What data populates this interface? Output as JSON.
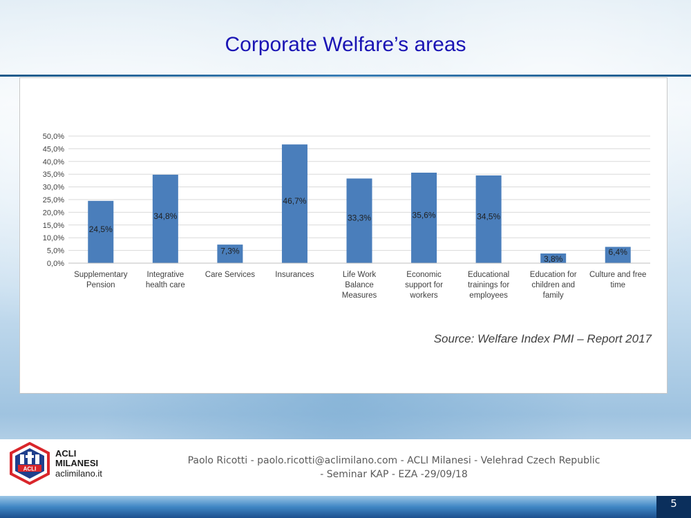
{
  "slide": {
    "title": "Corporate Welfare’s areas",
    "source": "Source: Welfare Index PMI – Report 2017",
    "footer_line1": "Paolo Ricotti  - paolo.ricotti@aclimilano.com  - ACLI Milanesi - Velehrad Czech Republic",
    "footer_line2": "- Seminar KAP - EZA -29/09/18",
    "page_number": "5"
  },
  "logo": {
    "name_line1": "ACLI",
    "name_line2": "MILANESI",
    "site": "aclimilano.it",
    "emblem_text": "ACLI"
  },
  "colors": {
    "title": "#1a14b4",
    "bar": "#4a7ebb",
    "logo_red": "#d9262b",
    "logo_blue": "#1f3f8c"
  },
  "chart_data": {
    "type": "bar",
    "categories": [
      [
        "Supplementary",
        "Pension"
      ],
      [
        "Integrative",
        "health care"
      ],
      [
        "Care Services"
      ],
      [
        "Insurances"
      ],
      [
        "Life Work",
        "Balance",
        "Measures"
      ],
      [
        "Economic",
        "support for",
        "workers"
      ],
      [
        "Educational",
        "trainings for",
        "employees"
      ],
      [
        "Education for",
        "children and",
        "family"
      ],
      [
        "Culture and free",
        "time"
      ]
    ],
    "values": [
      24.5,
      34.8,
      7.3,
      46.7,
      33.3,
      35.6,
      34.5,
      3.8,
      6.4
    ],
    "data_labels": [
      "24,5%",
      "34,8%",
      "7,3%",
      "46,7%",
      "33,3%",
      "35,6%",
      "34,5%",
      "3,8%",
      "6,4%"
    ],
    "yticks": [
      0,
      5,
      10,
      15,
      20,
      25,
      30,
      35,
      40,
      45,
      50
    ],
    "ytick_labels": [
      "0,0%",
      "5,0%",
      "10,0%",
      "15,0%",
      "20,0%",
      "25,0%",
      "30,0%",
      "35,0%",
      "40,0%",
      "45,0%",
      "50,0%"
    ],
    "ylim": [
      0,
      50
    ],
    "grid": true,
    "legend": false
  }
}
